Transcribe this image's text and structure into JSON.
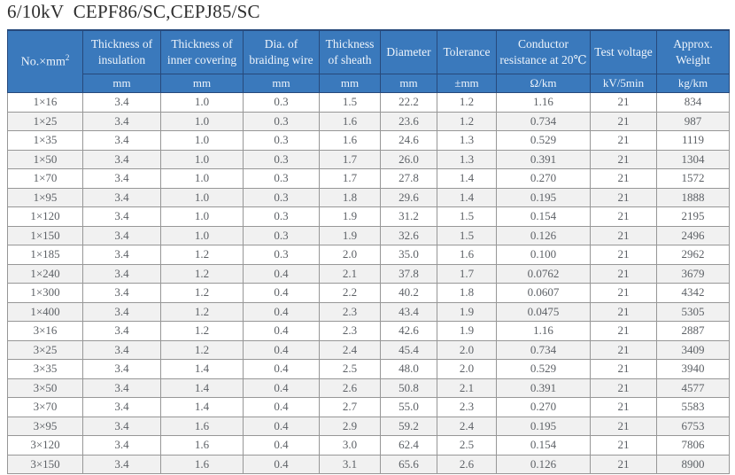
{
  "title": "6/10kV  CEPF86/SC,CEPJ85/SC",
  "colors": {
    "header_bg": "#3a79bc",
    "header_border": "#27497b",
    "header_text": "#eef4fb",
    "grid_border": "#979797",
    "stripe_bg": "#f1f1f1",
    "data_text": "#5d6166"
  },
  "table": {
    "corner": {
      "text": "No.×mm",
      "sup": "2"
    },
    "columns": [
      {
        "label": "Thickness of insulation",
        "unit": "mm"
      },
      {
        "label": "Thickness of inner covering",
        "unit": "mm"
      },
      {
        "label": "Dia. of braiding wire",
        "unit": "mm"
      },
      {
        "label": "Thickness of sheath",
        "unit": "mm"
      },
      {
        "label": "Diameter",
        "unit": "mm"
      },
      {
        "label": "Tolerance",
        "unit": "±mm"
      },
      {
        "label": "Conductor resistance at 20℃",
        "unit": "Ω/km"
      },
      {
        "label": "Test voltage",
        "unit": "kV/5min"
      },
      {
        "label": "Approx. Weight",
        "unit": "kg/km"
      }
    ],
    "rows": [
      [
        "1×16",
        "3.4",
        "1.0",
        "0.3",
        "1.5",
        "22.2",
        "1.2",
        "1.16",
        "21",
        "834"
      ],
      [
        "1×25",
        "3.4",
        "1.0",
        "0.3",
        "1.6",
        "23.6",
        "1.2",
        "0.734",
        "21",
        "987"
      ],
      [
        "1×35",
        "3.4",
        "1.0",
        "0.3",
        "1.6",
        "24.6",
        "1.3",
        "0.529",
        "21",
        "1119"
      ],
      [
        "1×50",
        "3.4",
        "1.0",
        "0.3",
        "1.7",
        "26.0",
        "1.3",
        "0.391",
        "21",
        "1304"
      ],
      [
        "1×70",
        "3.4",
        "1.0",
        "0.3",
        "1.7",
        "27.8",
        "1.4",
        "0.270",
        "21",
        "1572"
      ],
      [
        "1×95",
        "3.4",
        "1.0",
        "0.3",
        "1.8",
        "29.6",
        "1.4",
        "0.195",
        "21",
        "1888"
      ],
      [
        "1×120",
        "3.4",
        "1.0",
        "0.3",
        "1.9",
        "31.2",
        "1.5",
        "0.154",
        "21",
        "2195"
      ],
      [
        "1×150",
        "3.4",
        "1.0",
        "0.3",
        "1.9",
        "32.6",
        "1.5",
        "0.126",
        "21",
        "2496"
      ],
      [
        "1×185",
        "3.4",
        "1.2",
        "0.3",
        "2.0",
        "35.0",
        "1.6",
        "0.100",
        "21",
        "2962"
      ],
      [
        "1×240",
        "3.4",
        "1.2",
        "0.4",
        "2.1",
        "37.8",
        "1.7",
        "0.0762",
        "21",
        "3679"
      ],
      [
        "1×300",
        "3.4",
        "1.2",
        "0.4",
        "2.2",
        "40.2",
        "1.8",
        "0.0607",
        "21",
        "4342"
      ],
      [
        "1×400",
        "3.4",
        "1.2",
        "0.4",
        "2.3",
        "43.4",
        "1.9",
        "0.0475",
        "21",
        "5305"
      ],
      [
        "3×16",
        "3.4",
        "1.2",
        "0.4",
        "2.3",
        "42.6",
        "1.9",
        "1.16",
        "21",
        "2887"
      ],
      [
        "3×25",
        "3.4",
        "1.2",
        "0.4",
        "2.4",
        "45.4",
        "2.0",
        "0.734",
        "21",
        "3409"
      ],
      [
        "3×35",
        "3.4",
        "1.4",
        "0.4",
        "2.5",
        "48.0",
        "2.0",
        "0.529",
        "21",
        "3940"
      ],
      [
        "3×50",
        "3.4",
        "1.4",
        "0.4",
        "2.6",
        "50.8",
        "2.1",
        "0.391",
        "21",
        "4577"
      ],
      [
        "3×70",
        "3.4",
        "1.4",
        "0.4",
        "2.7",
        "55.0",
        "2.3",
        "0.270",
        "21",
        "5583"
      ],
      [
        "3×95",
        "3.4",
        "1.6",
        "0.4",
        "2.9",
        "59.2",
        "2.4",
        "0.195",
        "21",
        "6753"
      ],
      [
        "3×120",
        "3.4",
        "1.6",
        "0.4",
        "3.0",
        "62.4",
        "2.5",
        "0.154",
        "21",
        "7806"
      ],
      [
        "3×150",
        "3.4",
        "1.6",
        "0.4",
        "3.1",
        "65.6",
        "2.6",
        "0.126",
        "21",
        "8900"
      ]
    ]
  }
}
